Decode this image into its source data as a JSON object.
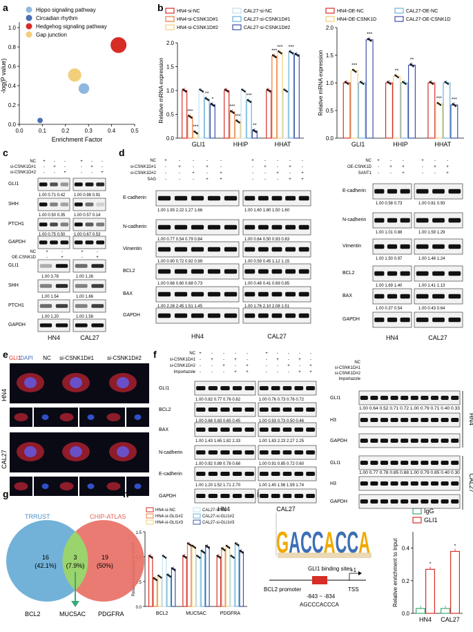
{
  "panels": {
    "a": "a",
    "b": "b",
    "c": "c",
    "d": "d",
    "e": "e",
    "f": "f",
    "g": "g",
    "h": "h",
    "i": "i"
  },
  "chart_data": [
    {
      "id": "a",
      "type": "scatter",
      "xlabel": "Enrichment Factor",
      "ylabel": "-log(P value)",
      "xlim": [
        0.0,
        0.5
      ],
      "ylim": [
        0.0,
        1.0
      ],
      "xticks": [
        "0.0",
        "0.1",
        "0.2",
        "0.3",
        "0.4",
        "0.5"
      ],
      "yticks": [
        "0.0",
        "0.2",
        "0.4",
        "0.6",
        "0.8",
        "1.0"
      ],
      "legend": [
        "Hippo signaling pathway",
        "Circadian rhythm",
        "Hedgehog signaling pathway",
        "Gap junction"
      ],
      "colors": [
        "#8fb8de",
        "#4a6fb5",
        "#d62d27",
        "#f2cf7a"
      ],
      "points": [
        {
          "name": "Hippo signaling pathway",
          "x": 0.28,
          "y": 0.37,
          "size": 3
        },
        {
          "name": "Circadian rhythm",
          "x": 0.09,
          "y": 0.04,
          "size": 1
        },
        {
          "name": "Hedgehog signaling pathway",
          "x": 0.43,
          "y": 0.82,
          "size": 5
        },
        {
          "name": "Gap junction",
          "x": 0.24,
          "y": 0.51,
          "size": 4
        }
      ]
    },
    {
      "id": "b-left",
      "type": "bar",
      "ylabel": "Relative mRNA expression",
      "ylim": [
        0,
        2.0
      ],
      "yticks": [
        "0.0",
        "0.5",
        "1.0",
        "1.5",
        "2.0"
      ],
      "categories": [
        "GLI1",
        "HHIP",
        "HHAT"
      ],
      "legend": [
        "HN4-si-NC",
        "HN4-si-CSNK1D#1",
        "HN4-si-CSNK1D#2",
        "CAL27-si-NC",
        "CAL27-si-CSNK1D#1",
        "CAL27-si-CSNK1D#2"
      ],
      "colors": [
        "#d62d27",
        "#e87a3b",
        "#f2cf7a",
        "#bfe0f2",
        "#6ab0d8",
        "#3d4fa8"
      ],
      "series": [
        {
          "name": "HN4-si-NC",
          "values": [
            1.0,
            1.0,
            1.0
          ]
        },
        {
          "name": "HN4-si-CSNK1D#1",
          "values": [
            0.45,
            0.55,
            1.72
          ]
        },
        {
          "name": "HN4-si-CSNK1D#2",
          "values": [
            0.12,
            0.35,
            1.8
          ]
        },
        {
          "name": "CAL27-si-NC",
          "values": [
            1.0,
            1.0,
            1.0
          ]
        },
        {
          "name": "CAL27-si-CSNK1D#1",
          "values": [
            0.82,
            0.78,
            1.8
          ]
        },
        {
          "name": "CAL27-si-CSNK1D#2",
          "values": [
            0.7,
            0.15,
            1.75
          ]
        }
      ],
      "sig": [
        "***",
        "***",
        "**",
        "*",
        "***",
        "***",
        "***",
        "**",
        "***",
        "***",
        "***"
      ]
    },
    {
      "id": "b-right",
      "type": "bar",
      "ylabel": "Relative mRNA expression",
      "ylim": [
        0,
        2.0
      ],
      "yticks": [
        "0.0",
        "0.5",
        "1.0",
        "1.5",
        "2.0"
      ],
      "categories": [
        "GLI1",
        "HHIP",
        "HHAT"
      ],
      "legend": [
        "HN4-OE-NC",
        "HN4-OE-CSNK1D",
        "CAL27-OE-NC",
        "CAL27-OE-CSNK1D"
      ],
      "colors": [
        "#d62d27",
        "#f2cf7a",
        "#6ab0d8",
        "#3d4fa8"
      ],
      "series": [
        {
          "name": "HN4-OE-NC",
          "values": [
            1.0,
            1.0,
            1.0
          ]
        },
        {
          "name": "HN4-OE-CSNK1D",
          "values": [
            1.22,
            1.12,
            0.62
          ]
        },
        {
          "name": "CAL27-OE-NC",
          "values": [
            1.0,
            1.0,
            1.0
          ]
        },
        {
          "name": "CAL27-OE-CSNK1D",
          "values": [
            1.78,
            1.32,
            0.6
          ]
        }
      ],
      "sig": [
        "***",
        "***",
        "**",
        "**",
        "***",
        "***"
      ]
    },
    {
      "id": "h",
      "type": "bar",
      "ylabel": "Relative expression of mRNA",
      "ylim": [
        0,
        1.5
      ],
      "yticks": [
        "0.0",
        "0.5",
        "1.0",
        "1.5"
      ],
      "categories": [
        "BCL2",
        "MUC5AC",
        "PDGFRA"
      ],
      "legend": [
        "HN4-si-NC",
        "HN4-si-GLI1#2",
        "HN4-si-GLI1#3",
        "CAL27-si-NC",
        "CAL27-si-GLI1#2",
        "CAL27-si-GLI1#3"
      ],
      "colors": [
        "#d62d27",
        "#e87a3b",
        "#f2cf7a",
        "#bfe0f2",
        "#6ab0d8",
        "#3d4fa8"
      ],
      "series": [
        {
          "name": "HN4-si-NC",
          "values": [
            1.0,
            1.0,
            1.0
          ]
        },
        {
          "name": "HN4-si-GLI1#2",
          "values": [
            0.55,
            1.25,
            1.15
          ]
        },
        {
          "name": "HN4-si-GLI1#3",
          "values": [
            0.6,
            1.2,
            1.2
          ]
        },
        {
          "name": "CAL27-si-NC",
          "values": [
            1.0,
            1.0,
            1.0
          ]
        },
        {
          "name": "CAL27-si-GLI1#2",
          "values": [
            0.62,
            1.1,
            1.25
          ]
        },
        {
          "name": "CAL27-si-GLI1#3",
          "values": [
            0.75,
            1.2,
            1.1
          ]
        }
      ]
    },
    {
      "id": "i",
      "type": "bar",
      "ylabel": "Relative enrichment to Input",
      "ylim": [
        0,
        0.5
      ],
      "yticks": [
        "0.0",
        "0.2",
        "0.4"
      ],
      "categories": [
        "HN4",
        "CAL27"
      ],
      "legend": [
        "IgG",
        "GLI1"
      ],
      "colors": [
        "#3aa876",
        "#d62d27"
      ],
      "series": [
        {
          "name": "IgG",
          "values": [
            0.03,
            0.03
          ]
        },
        {
          "name": "GLI1",
          "values": [
            0.27,
            0.38
          ]
        }
      ],
      "sig": [
        "*",
        "*"
      ]
    }
  ],
  "c": {
    "row_labels_top": [
      "NC",
      "si-CSNK1D#1",
      "si-CSNK1D#2"
    ],
    "signs_top": [
      "+",
      "-",
      "-",
      "+",
      "-",
      "-",
      "-",
      "+",
      "-",
      "-",
      "+",
      "-",
      "-",
      "-",
      "+",
      "-",
      "-",
      "+"
    ],
    "proteins_top": [
      "GLI1",
      "SHH",
      "PTCH1",
      "GAPDH"
    ],
    "quant_top": [
      "1.00  0.71  0.42",
      "1.00  0.98  0.91",
      "1.00  0.50  0.35",
      "1.00  0.57  0.14",
      "1.00  0.75  0.50",
      "1.00  0.67  0.53"
    ],
    "row_labels_bottom": [
      "NC",
      "OE-CSNK1D"
    ],
    "signs_bottom": [
      "+",
      "-",
      "+",
      "-",
      "-",
      "+",
      "-",
      "+"
    ],
    "proteins_bottom": [
      "GLI1",
      "SHH",
      "PTCH1",
      "GAPDH"
    ],
    "quant_bottom": [
      "1.00     3.78",
      "1.00     1.26",
      "1.00     1.54",
      "1.00     1.66",
      "1.00     1.20",
      "1.00     1.58"
    ],
    "cells": [
      "HN4",
      "CAL27"
    ]
  },
  "d": {
    "row_labels": [
      "NC",
      "si-CSNK1D#1",
      "si-CSNK1D#2",
      "SAG"
    ],
    "proteins": [
      "E-cadherin",
      "N-cadherin",
      "Vimentin",
      "BCL2",
      "BAX",
      "GAPDH"
    ],
    "quant_left": [
      "1.00  1.93  2.22  1.27  1.66",
      "1.00  0.77  0.54  0.79  0.84",
      "1.00  0.90  0.72  0.92  0.99",
      "1.00  0.68  0.60  0.68  0.73",
      "1.00  2.28  2.45  1.51  1.45"
    ],
    "quant_right": [
      "1.00  1.60  1.80  1.50  1.60",
      "1.00  0.64  0.50  0.93  0.83",
      "1.00  0.59  0.45  1.12  1.15",
      "1.00  0.48  0.41  0.69  0.85",
      "1.00  1.76  2.10  2.08  1.51"
    ],
    "cells": [
      "HN4",
      "CAL27"
    ],
    "oe_row_labels": [
      "NC",
      "OE-CSNK1D",
      "SANT1"
    ],
    "oe_quant_left": [
      "1.00  0.58  0.73",
      "1.00  1.01  0.88",
      "1.00  1.50  0.97",
      "1.00  1.69  1.40",
      "1.00  0.37  0.54"
    ],
    "oe_quant_right": [
      "1.00  0.81  0.93",
      "1.00  1.59  1.29",
      "1.00  1.48  1.24",
      "1.00  1.41  1.13",
      "1.00  0.43  0.64"
    ]
  },
  "e": {
    "title_gli1": "GLI1",
    "title_dapi": "/DAPI",
    "columns": [
      "NC",
      "si-CSNK1D#1",
      "si-CSNK1D#2"
    ],
    "rows": [
      "HN4",
      "CAL27"
    ]
  },
  "f": {
    "row_labels": [
      "NC",
      "si-CSNK1D#1",
      "si-CSNK1D#2",
      "Importazole"
    ],
    "proteins": [
      "GLI1",
      "BCL2",
      "BAX",
      "N-cadherin",
      "E-cadherin",
      "GAPDH"
    ],
    "quant_left": [
      "1.00  0.82  0.77  0.76  0.82",
      "1.00  0.88  0.83  0.65  0.45",
      "1.00  1.43  1.65  1.82  2.33",
      "1.00  0.92  0.89  0.78  0.68",
      "1.00  1.20  1.52  1.71  2.70"
    ],
    "quant_right": [
      "1.00  0.76  0.73  0.76  0.72",
      "1.00  0.93  0.73  0.50  0.46",
      "1.00  1.83  2.23  2.27  2.25",
      "1.00  0.91  0.85  0.72  0.60",
      "1.00  1.40  1.56  1.59  1.74"
    ],
    "cells": [
      "HN4",
      "CAL27"
    ],
    "nuc_proteins": [
      "GLI1",
      "H3",
      "GAPDH",
      "GLI1",
      "H3",
      "GAPDH"
    ],
    "nuc_quant_hn4": "1.00  0.64  0.52  0.71  0.72  1.00  0.79  0.71  0.40  0.33",
    "nuc_quant_cal27": "1.00  0.77  0.78  0.85  0.88  1.00  0.79  0.85  0.40  0.30",
    "nuc_cells": [
      "HN4",
      "CAL27"
    ]
  },
  "g": {
    "left": "TRRUST",
    "right": "CHIP-ATLAS",
    "left_count": "16",
    "left_pct": "(42.1%)",
    "mid_count": "3",
    "mid_pct": "(7.9%)",
    "right_count": "19",
    "right_pct": "(50%)",
    "genes": [
      "BCL2",
      "MUC5AC",
      "PDGFRA"
    ]
  },
  "i": {
    "binding_label": "GLI1 binding sites",
    "promoter": "BCL2 promoter",
    "position": "-843 ~ -834",
    "motif": "AGCCCACCCA",
    "tss_plus": "+1",
    "tss": "TSS",
    "logo_letters": "GACCACCA"
  }
}
